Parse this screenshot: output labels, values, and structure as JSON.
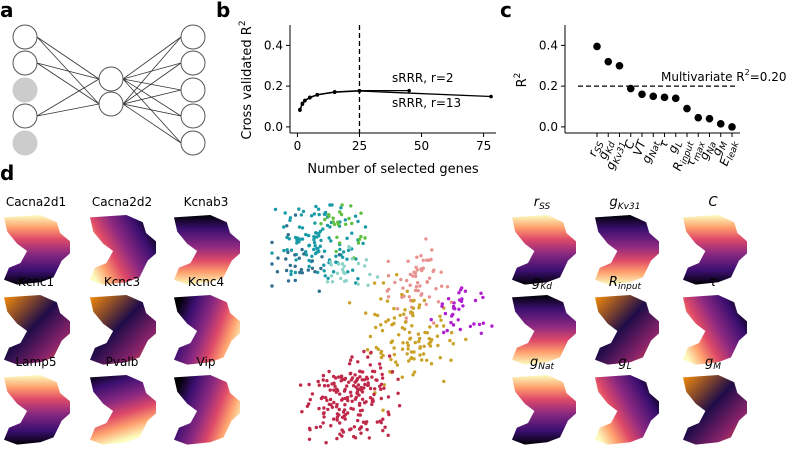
{
  "panels": {
    "a": "a",
    "b": "b",
    "c": "c",
    "d": "d"
  },
  "colors": {
    "node_stroke": "#555555",
    "node_fill": "#ffffff",
    "node_dropped": "#cccccc",
    "line": "#000000",
    "map_colormap": "inferno"
  },
  "panel_a": {
    "input_nodes_dropped": [
      false,
      false,
      true,
      false,
      true
    ],
    "hidden_nodes": 2,
    "output_nodes": 5
  },
  "chart_data": [
    {
      "panel": "b",
      "type": "line",
      "xlabel": "Number of selected genes",
      "ylabel": "Cross validated R²",
      "ylabel_base": "Cross validated R",
      "ylabel_sup": "2",
      "xlim": [
        -3,
        80
      ],
      "ylim": [
        -0.03,
        0.5
      ],
      "xticks": [
        0,
        25,
        50,
        75
      ],
      "yticks": [
        0.0,
        0.2,
        0.4
      ],
      "ytick_labels": [
        "0.0",
        "0.2",
        "0.4"
      ],
      "vline_x": 25,
      "series": [
        {
          "name": "sRRR, r=2",
          "x": [
            1,
            2,
            3,
            5,
            8,
            15,
            25,
            45
          ],
          "y": [
            0.085,
            0.115,
            0.13,
            0.145,
            0.158,
            0.172,
            0.178,
            0.178
          ]
        },
        {
          "name": "sRRR, r=13",
          "x": [
            1,
            2,
            3,
            5,
            8,
            15,
            25,
            78
          ],
          "y": [
            0.082,
            0.112,
            0.128,
            0.143,
            0.157,
            0.17,
            0.176,
            0.149
          ]
        }
      ]
    },
    {
      "panel": "c",
      "type": "scatter",
      "ylabel": "R²",
      "ylabel_base": "R",
      "ylabel_sup": "2",
      "ylim": [
        -0.03,
        0.5
      ],
      "yticks": [
        0.0,
        0.2,
        0.4
      ],
      "ytick_labels": [
        "0.0",
        "0.2",
        "0.4"
      ],
      "categories": [
        {
          "base": "r",
          "sub": "SS"
        },
        {
          "base": "g",
          "sub": "Kd"
        },
        {
          "base": "g",
          "sub": "Kv31"
        },
        {
          "base": "C",
          "sub": ""
        },
        {
          "base": "VT",
          "sub": ""
        },
        {
          "base": "g",
          "sub": "Nat"
        },
        {
          "base": "τ",
          "sub": ""
        },
        {
          "base": "g",
          "sub": "L"
        },
        {
          "base": "R",
          "sub": "input"
        },
        {
          "base": "τ",
          "sub": "max"
        },
        {
          "base": "g",
          "sub": "Na"
        },
        {
          "base": "g",
          "sub": "M"
        },
        {
          "base": "E",
          "sub": "leak"
        }
      ],
      "values": [
        0.395,
        0.32,
        0.3,
        0.188,
        0.16,
        0.15,
        0.145,
        0.14,
        0.09,
        0.045,
        0.04,
        0.015,
        0.0
      ],
      "hline_y": 0.2,
      "hline_label": "Multivariate R²=0.20",
      "hline_label_pre": "Multivariate R",
      "hline_label_sup": "2",
      "hline_label_post": "=0.20"
    }
  ],
  "maps_left": [
    {
      "label": "Cacna2d1",
      "pattern": "bright-top"
    },
    {
      "label": "Cacna2d2",
      "pattern": "bright-left"
    },
    {
      "label": "Kcnab3",
      "pattern": "dark-top"
    },
    {
      "label": "Kcnc1",
      "pattern": "dark-mid"
    },
    {
      "label": "Kcnc3",
      "pattern": "dark-mid"
    },
    {
      "label": "Kcnc4",
      "pattern": "bright-right"
    },
    {
      "label": "Lamp5",
      "pattern": "bright-top"
    },
    {
      "label": "Pvalb",
      "pattern": "dark-top-bright-bottom"
    },
    {
      "label": "Vip",
      "pattern": "bright-right"
    }
  ],
  "maps_right": [
    {
      "base": "r",
      "sub": "SS",
      "pattern": "bright-top"
    },
    {
      "base": "g",
      "sub": "Kv31",
      "pattern": "dark-top"
    },
    {
      "base": "C",
      "sub": "",
      "pattern": "bright-top"
    },
    {
      "base": "g",
      "sub": "Kd",
      "pattern": "dark-top"
    },
    {
      "base": "R",
      "sub": "input",
      "pattern": "dark-mid"
    },
    {
      "base": "τ",
      "sub": "",
      "pattern": "bright-left"
    },
    {
      "base": "g",
      "sub": "Nat",
      "pattern": "bright-top"
    },
    {
      "base": "g",
      "sub": "L",
      "pattern": "bright-left"
    },
    {
      "base": "g",
      "sub": "M",
      "pattern": "dark-mid"
    }
  ],
  "tsne_clusters": [
    {
      "color": "#1a9ba8",
      "n": 110
    },
    {
      "color": "#2f6f8f",
      "n": 30
    },
    {
      "color": "#5fbf3f",
      "n": 25
    },
    {
      "color": "#8bd3c7",
      "n": 25
    },
    {
      "color": "#e8928f",
      "n": 60
    },
    {
      "color": "#c9a227",
      "n": 110
    },
    {
      "color": "#b01fcf",
      "n": 35
    },
    {
      "color": "#c0294a",
      "n": 200
    }
  ]
}
